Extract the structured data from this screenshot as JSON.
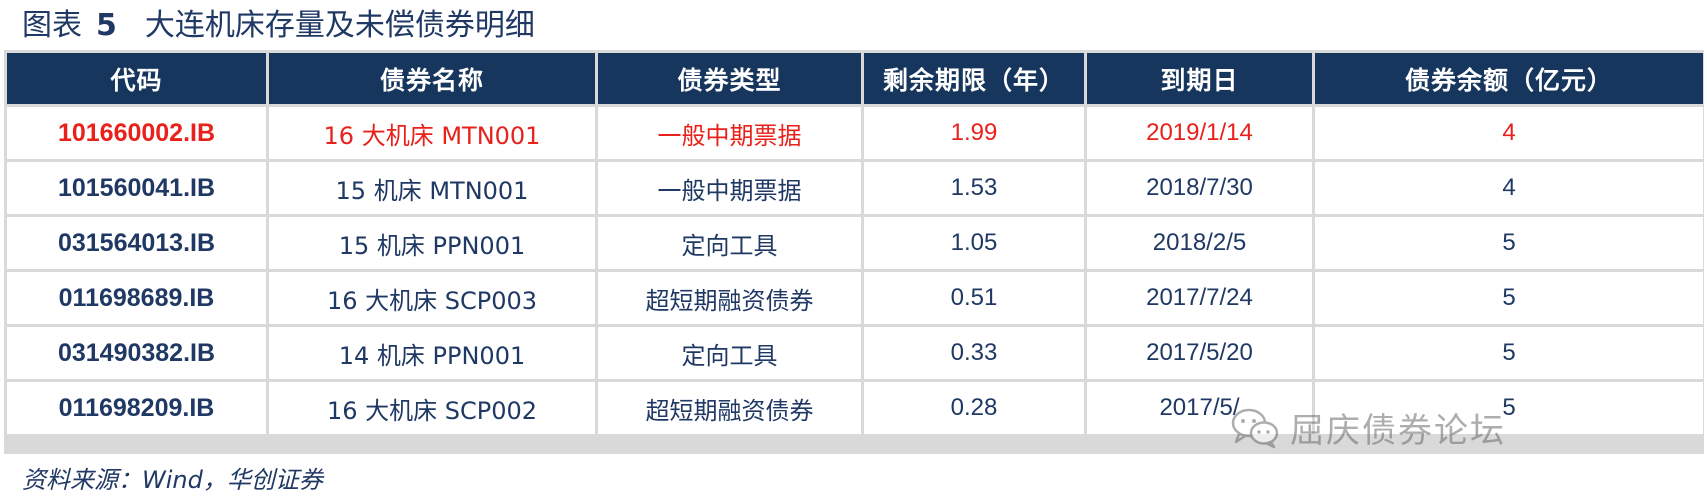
{
  "title": {
    "prefix": "图表",
    "number": "5",
    "text": "大连机床存量及未偿债券明细"
  },
  "table": {
    "headers": [
      "代码",
      "债券名称",
      "债券类型",
      "剩余期限（年）",
      "到期日",
      "债券余额（亿元）"
    ],
    "rows": [
      {
        "code": "101660002.IB",
        "name": "16 大机床 MTN001",
        "type": "一般中期票据",
        "remaining": "1.99",
        "maturity": "2019/1/14",
        "balance": "4"
      },
      {
        "code": "101560041.IB",
        "name": "15 机床 MTN001",
        "type": "一般中期票据",
        "remaining": "1.53",
        "maturity": "2018/7/30",
        "balance": "4"
      },
      {
        "code": "031564013.IB",
        "name": "15 机床 PPN001",
        "type": "定向工具",
        "remaining": "1.05",
        "maturity": "2018/2/5",
        "balance": "5"
      },
      {
        "code": "011698689.IB",
        "name": "16 大机床 SCP003",
        "type": "超短期融资债券",
        "remaining": "0.51",
        "maturity": "2017/7/24",
        "balance": "5"
      },
      {
        "code": "031490382.IB",
        "name": "14 机床 PPN001",
        "type": "定向工具",
        "remaining": "0.33",
        "maturity": "2017/5/20",
        "balance": "5"
      },
      {
        "code": "011698209.IB",
        "name": "16 大机床 SCP002",
        "type": "超短期融资债券",
        "remaining": "0.28",
        "maturity": "2017/5/",
        "balance": "5"
      }
    ]
  },
  "source": "资料来源：Wind，华创证券",
  "watermark": {
    "text": "屈庆债券论坛",
    "icon": "wechat-icon"
  },
  "colors": {
    "header_bg": "#17365d",
    "text": "#1f3864",
    "highlight": "#e8211a",
    "grid": "#d9d9d9"
  }
}
